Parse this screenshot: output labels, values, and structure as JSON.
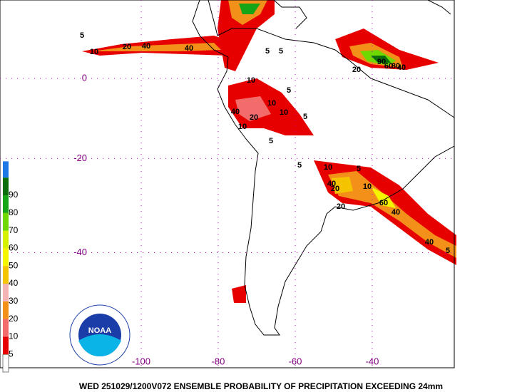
{
  "title": "WED 251029/1200V072  ENSEMBLE PROBABILITY OF PRECIPITATION EXCEEDING 24mm",
  "map": {
    "lat_labels": [
      0,
      -20,
      -40
    ],
    "lon_labels": [
      -100,
      -80,
      -60,
      -40
    ]
  },
  "colorbar": {
    "levels": [
      5,
      10,
      20,
      30,
      40,
      50,
      60,
      70,
      80,
      90
    ],
    "colors": [
      "#e60000",
      "#f26c6c",
      "#f39019",
      "#f4b4b4",
      "#f5c400",
      "#f5f500",
      "#d6f000",
      "#6ed800",
      "#16a516",
      "#0b6e0b"
    ]
  },
  "logo": "NOAA",
  "contour_labels": [
    5,
    10,
    20,
    40,
    40,
    5,
    5,
    10,
    10,
    20,
    5,
    5,
    90,
    80,
    60,
    40,
    20,
    10,
    5,
    10,
    20,
    40,
    60,
    40,
    40,
    5,
    10,
    5,
    20,
    10,
    5,
    40
  ]
}
